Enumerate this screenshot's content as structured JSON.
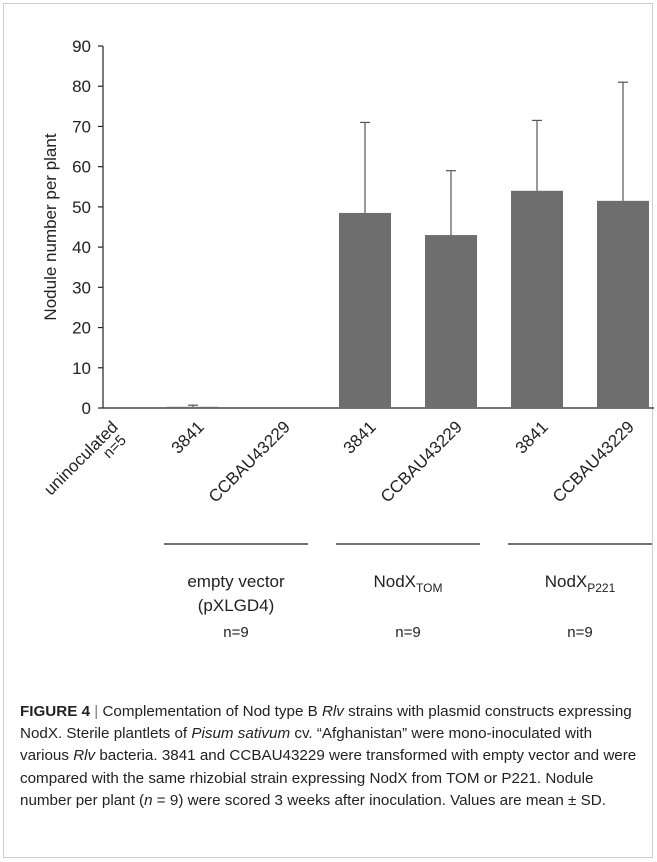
{
  "chart_data": {
    "type": "bar",
    "ylabel": "Nodule number per plant",
    "ylim": [
      0,
      90
    ],
    "yticks": [
      0,
      10,
      20,
      30,
      40,
      50,
      60,
      70,
      80,
      90
    ],
    "categories": [
      "uninoculated",
      "3841",
      "CCBAU43229",
      "3841",
      "CCBAU43229",
      "3841",
      "CCBAU43229"
    ],
    "values": [
      0,
      0.3,
      0,
      48.5,
      43,
      54,
      51.5
    ],
    "errors": [
      0,
      0.4,
      0,
      22.5,
      16,
      17.5,
      29.5
    ],
    "bar_color": "#6e6e6e",
    "uninoculated_n": "n=5",
    "groups": [
      {
        "label": "empty vector",
        "label2": "(pXLGD4)",
        "n": "n=9"
      },
      {
        "label": "NodX",
        "sub": "TOM",
        "n": "n=9"
      },
      {
        "label": "NodX",
        "sub": "P221",
        "n": "n=9"
      }
    ]
  },
  "caption": {
    "label": "FIGURE 4",
    "sep": "|",
    "t1": "Complementation of Nod type B ",
    "i1": "Rlv",
    "t2": " strains with plasmid constructs expressing NodX. Sterile plantlets of ",
    "i2": "Pisum sativum",
    "t3": " cv. “Afghanistan” were mono-inoculated with various ",
    "i3": "Rlv",
    "t4": " bacteria. 3841 and CCBAU43229 were transformed with empty vector and were compared with the same rhizobial strain expressing NodX from TOM or P221. Nodule number per plant (",
    "i4": "n",
    "t5": " = 9) were scored 3 weeks after inoculation. Values are mean ± SD."
  }
}
